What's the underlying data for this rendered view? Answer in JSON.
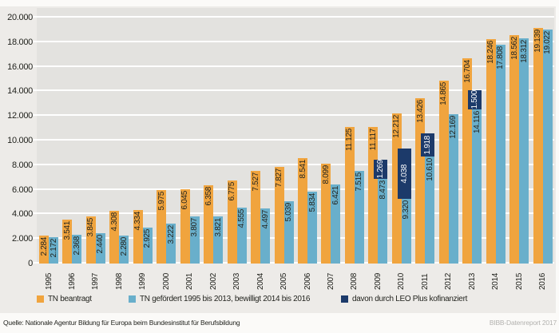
{
  "chart_data": {
    "type": "bar",
    "title": "",
    "categories": [
      "1995",
      "1996",
      "1997",
      "1998",
      "1999",
      "2000",
      "2001",
      "2002",
      "2003",
      "2004",
      "2005",
      "2006",
      "2007",
      "2008",
      "2009",
      "2010",
      "2011",
      "2012",
      "2013",
      "2014",
      "2015",
      "2016"
    ],
    "series": [
      {
        "name": "TN beantragt",
        "color": "#f0a43e",
        "values": [
          2284,
          3541,
          3845,
          4308,
          4334,
          5975,
          6045,
          6358,
          6775,
          7527,
          7827,
          8541,
          8099,
          11125,
          11117,
          12212,
          13426,
          14865,
          16704,
          18246,
          18562,
          19139
        ]
      },
      {
        "name": "TN gefördert 1995 bis 2013, bewilligt 2014 bis 2016",
        "color": "#69afcb",
        "values": [
          2172,
          2368,
          2440,
          2280,
          2925,
          3222,
          3807,
          3821,
          4555,
          4497,
          5039,
          5834,
          6421,
          7515,
          8473,
          9320,
          10610,
          12169,
          14116,
          17808,
          18312,
          19022
        ]
      },
      {
        "name": "davon durch LEO Plus kofinanziert",
        "color": "#1c3a6a",
        "subset_of_series": 1,
        "values": [
          null,
          null,
          null,
          null,
          null,
          null,
          null,
          null,
          null,
          null,
          null,
          null,
          null,
          null,
          1269,
          4038,
          1918,
          null,
          1500,
          null,
          null,
          null
        ]
      }
    ],
    "ylim": [
      0,
      20000
    ],
    "ytick_step": 2000,
    "grid": true,
    "legend_position": "bottom",
    "value_labels": true,
    "number_format": "de-dot"
  },
  "footer": {
    "source": "Quelle: Nationale Agentur Bildung für Europa beim Bundesinstitut für Berufsbildung",
    "credit": "BIBB-Datenreport 2017"
  }
}
